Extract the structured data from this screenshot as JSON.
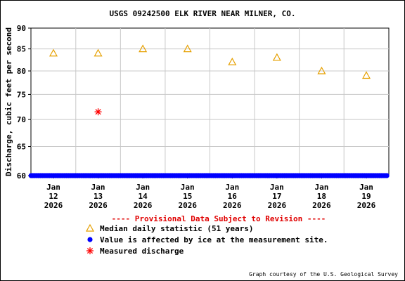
{
  "chart_data": {
    "type": "scatter",
    "title": "USGS 09242500 ELK RIVER NEAR MILNER, CO.",
    "ylabel": "Discharge, cubic feet per second",
    "ylim": [
      60,
      90
    ],
    "yticks": [
      60,
      65,
      70,
      75,
      80,
      85,
      90
    ],
    "yscale": "log",
    "grid": true,
    "x_ticks": [
      {
        "month": "Jan",
        "day": "12",
        "year": "2026"
      },
      {
        "month": "Jan",
        "day": "13",
        "year": "2026"
      },
      {
        "month": "Jan",
        "day": "14",
        "year": "2026"
      },
      {
        "month": "Jan",
        "day": "15",
        "year": "2026"
      },
      {
        "month": "Jan",
        "day": "16",
        "year": "2026"
      },
      {
        "month": "Jan",
        "day": "17",
        "year": "2026"
      },
      {
        "month": "Jan",
        "day": "18",
        "year": "2026"
      },
      {
        "month": "Jan",
        "day": "19",
        "year": "2026"
      }
    ],
    "series": [
      {
        "name": "Median daily statistic (51 years)",
        "marker": "triangle",
        "color": "#e6a000",
        "points": [
          {
            "x": "2026-01-12",
            "y": 84
          },
          {
            "x": "2026-01-13",
            "y": 84
          },
          {
            "x": "2026-01-14",
            "y": 85
          },
          {
            "x": "2026-01-15",
            "y": 85
          },
          {
            "x": "2026-01-16",
            "y": 82
          },
          {
            "x": "2026-01-17",
            "y": 83
          },
          {
            "x": "2026-01-18",
            "y": 80
          },
          {
            "x": "2026-01-19",
            "y": 79
          }
        ]
      },
      {
        "name": "Value is affected by ice at the measurement site.",
        "marker": "dot",
        "color": "#0000ff",
        "x_start": "2026-01-12 00:00",
        "x_end": "2026-01-19 23:45",
        "y": 60
      },
      {
        "name": "Measured discharge",
        "marker": "asterisk",
        "color": "#ff0000",
        "points": [
          {
            "x": "2026-01-13",
            "y": 71.5
          }
        ]
      }
    ],
    "notice": "---- Provisional Data Subject to Revision ----",
    "credit": "Graph courtesy of the U.S. Geological Survey"
  }
}
